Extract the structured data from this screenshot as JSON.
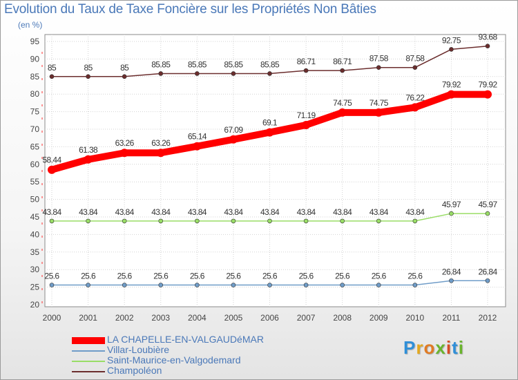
{
  "chart_data": {
    "type": "line",
    "title": "Evolution du Taux de Taxe Foncière sur les Propriétés Non Bâties",
    "ylabel": "(en %)",
    "xlabel": "",
    "ylim": [
      20,
      95
    ],
    "yticks": [
      20,
      25,
      30,
      35,
      40,
      45,
      50,
      55,
      60,
      65,
      70,
      75,
      80,
      85,
      90,
      95
    ],
    "grid": true,
    "categories": [
      "2000",
      "2001",
      "2002",
      "2003",
      "2004",
      "2005",
      "2006",
      "2007",
      "2008",
      "2009",
      "2010",
      "2011",
      "2012"
    ],
    "series": [
      {
        "name": "Champoléon",
        "color": "#6b2d2d",
        "values": [
          85,
          85,
          85,
          85.85,
          85.85,
          85.85,
          85.85,
          86.71,
          86.71,
          87.58,
          87.58,
          92.75,
          93.68
        ],
        "labels": [
          "85",
          "85",
          "85",
          "85.85",
          "85.85",
          "85.85",
          "85.85",
          "86.71",
          "86.71",
          "87.58",
          "87.58",
          "92.75",
          "93.68"
        ]
      },
      {
        "name": "LA CHAPELLE-EN-VALGAUDéMAR",
        "color": "#ff0000",
        "values": [
          58.44,
          61.38,
          63.26,
          63.26,
          65.14,
          67.09,
          69.1,
          71.19,
          74.75,
          74.75,
          76.22,
          79.92,
          79.92
        ],
        "labels": [
          "58.44",
          "61.38",
          "63.26",
          "63.26",
          "65.14",
          "67.09",
          "69.1",
          "71.19",
          "74.75",
          "74.75",
          "76.22",
          "79.92",
          "79.92"
        ]
      },
      {
        "name": "Saint-Maurice-en-Valgodemard",
        "color": "#99dd66",
        "values": [
          43.84,
          43.84,
          43.84,
          43.84,
          43.84,
          43.84,
          43.84,
          43.84,
          43.84,
          43.84,
          43.84,
          45.97,
          45.97
        ],
        "labels": [
          "43.84",
          "43.84",
          "43.84",
          "43.84",
          "43.84",
          "43.84",
          "43.84",
          "43.84",
          "43.84",
          "43.84",
          "43.84",
          "45.97",
          "45.97"
        ]
      },
      {
        "name": "Villar-Loubière",
        "color": "#6f9cc8",
        "values": [
          25.6,
          25.6,
          25.6,
          25.6,
          25.6,
          25.6,
          25.6,
          25.6,
          25.6,
          25.6,
          25.6,
          26.84,
          26.84
        ],
        "labels": [
          "25.6",
          "25.6",
          "25.6",
          "25.6",
          "25.6",
          "25.6",
          "25.6",
          "25.6",
          "25.6",
          "25.6",
          "25.6",
          "26.84",
          "26.84"
        ]
      }
    ],
    "legend": [
      {
        "name": "LA CHAPELLE-EN-VALGAUDéMAR",
        "color": "#ff0000"
      },
      {
        "name": "Villar-Loubière",
        "color": "#6f9cc8"
      },
      {
        "name": "Saint-Maurice-en-Valgodemard",
        "color": "#99dd66"
      },
      {
        "name": "Champoléon",
        "color": "#6b2d2d"
      }
    ],
    "legend_position": "bottom-left"
  },
  "logo_text": "Proxiti"
}
